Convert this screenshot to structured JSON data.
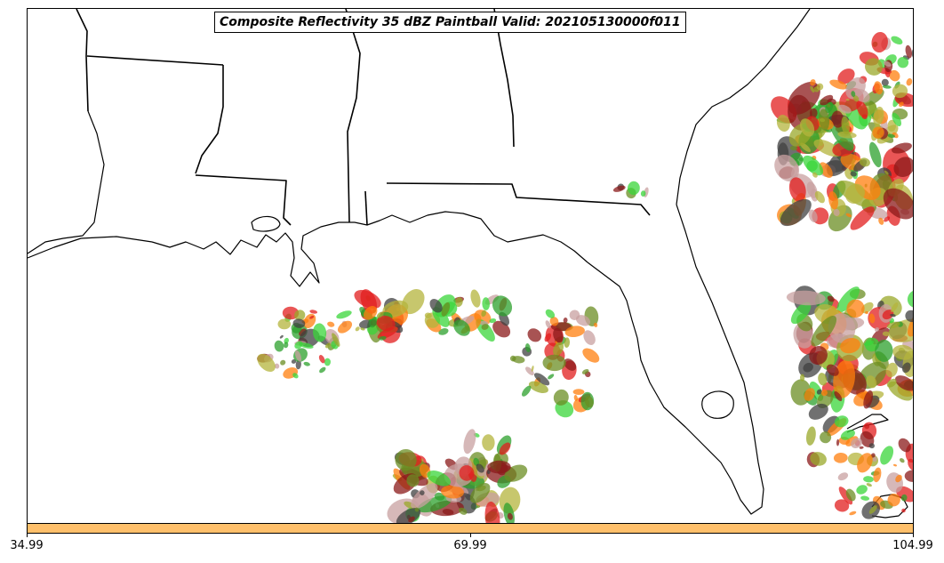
{
  "title": "Composite Reflectivity 35 dBZ Paintball Valid: 202105130000f011",
  "colorbar": {
    "color": "#ffc06b",
    "ticks": [
      "34.99",
      "69.99",
      "104.99"
    ],
    "min": 34.99,
    "max": 104.99
  },
  "map": {
    "region": "Gulf of Mexico / Southeast US",
    "map_type": "paintball plot",
    "boundaries": [
      "state-lines",
      "coastlines"
    ],
    "member_colors": [
      "#e11d1d",
      "#ff7f0e",
      "#2ca02c",
      "#39d639",
      "#404040",
      "#8b1a1a",
      "#9aa82a",
      "#6b8e23",
      "#c8a0a0",
      "#b4b43c"
    ]
  }
}
